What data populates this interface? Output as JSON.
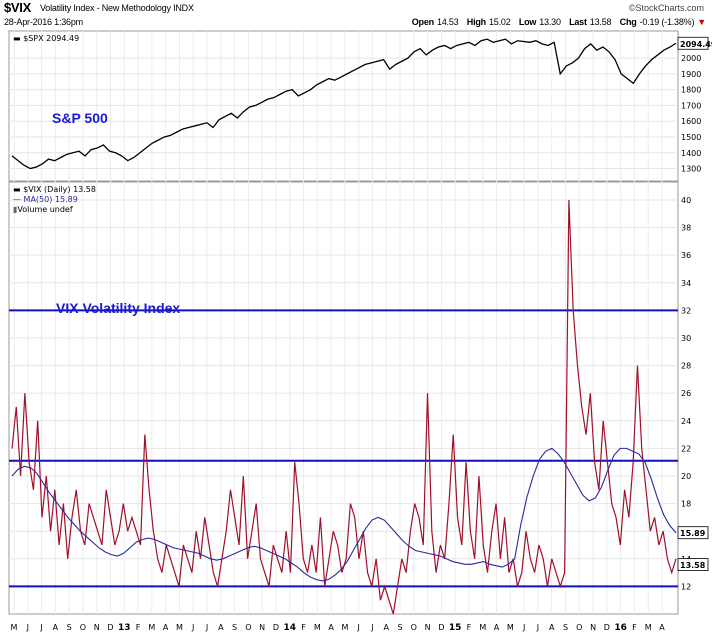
{
  "header": {
    "symbol": "$VIX",
    "name": "Volatility Index - New Methodology INDX",
    "date": "28-Apr-2016 1:36pm",
    "brand": "©StockCharts.com",
    "quote": {
      "open_label": "Open",
      "open": "14.53",
      "high_label": "High",
      "high": "15.02",
      "low_label": "Low",
      "low": "13.30",
      "last_label": "Last",
      "last": "13.58",
      "chg_label": "Chg",
      "chg": "-0.19 (-1.38%)"
    }
  },
  "chart_data": [
    {
      "type": "line",
      "legend": "$SPX 2094.49",
      "annotation": "S&P 500",
      "last_value_label": "2094.49",
      "ylim": [
        1240,
        2140
      ],
      "yticks": [
        1300,
        1400,
        1500,
        1600,
        1700,
        1800,
        1900,
        2000
      ],
      "line_color": "#000000",
      "series": [
        {
          "values": [
            1380,
            1350,
            1320,
            1300,
            1310,
            1330,
            1360,
            1350,
            1370,
            1390,
            1400,
            1410,
            1380,
            1420,
            1430,
            1450,
            1410,
            1400,
            1380,
            1350,
            1370,
            1400,
            1430,
            1460,
            1480,
            1500,
            1510,
            1530,
            1550,
            1560,
            1570,
            1580,
            1590,
            1560,
            1610,
            1630,
            1650,
            1620,
            1660,
            1690,
            1700,
            1720,
            1740,
            1750,
            1770,
            1790,
            1800,
            1760,
            1780,
            1800,
            1830,
            1850,
            1870,
            1860,
            1880,
            1900,
            1920,
            1940,
            1960,
            1970,
            1980,
            1990,
            1930,
            1960,
            1980,
            2000,
            2040,
            2060,
            2020,
            2050,
            2070,
            2080,
            2060,
            2080,
            2090,
            2100,
            2080,
            2110,
            2120,
            2100,
            2110,
            2120,
            2090,
            2110,
            2105,
            2100,
            2110,
            2090,
            2080,
            2100,
            1900,
            1950,
            1970,
            2000,
            2060,
            2090,
            2050,
            2070,
            2040,
            1990,
            1900,
            1870,
            1840,
            1900,
            1950,
            1990,
            2020,
            2050,
            2070,
            2094
          ]
        }
      ]
    },
    {
      "type": "line",
      "legend": [
        "$VIX (Daily) 13.58",
        "MA(50) 15.89",
        "Volume undef"
      ],
      "annotation": "VIX Volatility Index",
      "last_value_label": "13.58",
      "ma_value_label": "15.89",
      "ylim": [
        10,
        41.3
      ],
      "yticks": [
        12,
        14,
        16,
        18,
        20,
        22,
        24,
        26,
        28,
        30,
        32,
        34,
        36,
        38,
        40
      ],
      "horizontal_lines": [
        32,
        21.1,
        12
      ],
      "x_ticks": [
        "M",
        "J",
        "J",
        "A",
        "S",
        "O",
        "N",
        "D",
        "13",
        "F",
        "M",
        "A",
        "M",
        "J",
        "J",
        "A",
        "S",
        "O",
        "N",
        "D",
        "14",
        "F",
        "M",
        "A",
        "M",
        "J",
        "J",
        "A",
        "S",
        "O",
        "N",
        "D",
        "15",
        "F",
        "M",
        "A",
        "M",
        "J",
        "J",
        "A",
        "S",
        "O",
        "N",
        "D",
        "16",
        "F",
        "M",
        "A"
      ],
      "series": [
        {
          "name": "$VIX (Daily)",
          "color": "#a0102a",
          "values": [
            22,
            25,
            20,
            26,
            21,
            19,
            24,
            17,
            20,
            16,
            19,
            15,
            18,
            14,
            17,
            19,
            16,
            15,
            18,
            17,
            16,
            15,
            19,
            17,
            15,
            16,
            18,
            16,
            17,
            16,
            15,
            23,
            19,
            16,
            14,
            13,
            15,
            14,
            13,
            12,
            15,
            14,
            13,
            16,
            14,
            17,
            15,
            13,
            12,
            14,
            16,
            19,
            17,
            15,
            20,
            14,
            16,
            18,
            14,
            13,
            12,
            15,
            14,
            13,
            16,
            13,
            21,
            18,
            14,
            13,
            15,
            13,
            17,
            12,
            14,
            16,
            15,
            13,
            14,
            18,
            17,
            14,
            16,
            13,
            12,
            14,
            11,
            12,
            11,
            10,
            12,
            14,
            13,
            16,
            18,
            17,
            15,
            26,
            16,
            13,
            15,
            14,
            18,
            23,
            17,
            15,
            21,
            16,
            14,
            20,
            15,
            13,
            16,
            18,
            14,
            17,
            13,
            14,
            12,
            13,
            16,
            14,
            13,
            15,
            14,
            12,
            14,
            13,
            12,
            13,
            40,
            32,
            28,
            25,
            23,
            26,
            21,
            19,
            24,
            21,
            18,
            17,
            15,
            19,
            17,
            21,
            28,
            22,
            19,
            16,
            17,
            15,
            16,
            14,
            13,
            14
          ]
        },
        {
          "name": "MA(50)",
          "color": "#2a2a9a",
          "values": [
            20,
            20.5,
            20.7,
            20.6,
            20.2,
            19.5,
            18.8,
            18.2,
            17.6,
            17.0,
            16.5,
            16.0,
            15.6,
            15.2,
            14.8,
            14.5,
            14.3,
            14.2,
            14.4,
            14.8,
            15.2,
            15.4,
            15.5,
            15.4,
            15.2,
            15.0,
            14.8,
            14.7,
            14.6,
            14.5,
            14.4,
            14.2,
            14.0,
            13.9,
            14.0,
            14.2,
            14.4,
            14.6,
            14.8,
            14.9,
            14.8,
            14.6,
            14.4,
            14.2,
            14.0,
            13.7,
            13.4,
            13.0,
            12.7,
            12.5,
            12.4,
            12.5,
            12.8,
            13.2,
            13.8,
            14.6,
            15.4,
            16.2,
            16.8,
            17.0,
            16.8,
            16.3,
            15.8,
            15.3,
            14.9,
            14.6,
            14.5,
            14.4,
            14.3,
            14.2,
            14.0,
            13.8,
            13.7,
            13.6,
            13.6,
            13.7,
            13.8,
            13.6,
            13.5,
            13.4,
            13.6,
            14.0,
            16.5,
            18.5,
            20.0,
            21.2,
            21.8,
            22.0,
            21.6,
            21.0,
            20.2,
            19.4,
            18.6,
            18.2,
            18.4,
            19.2,
            20.4,
            21.5,
            22.0,
            22.0,
            21.8,
            21.6,
            21.0,
            19.8,
            18.4,
            17.2,
            16.4,
            15.89
          ]
        }
      ]
    }
  ]
}
